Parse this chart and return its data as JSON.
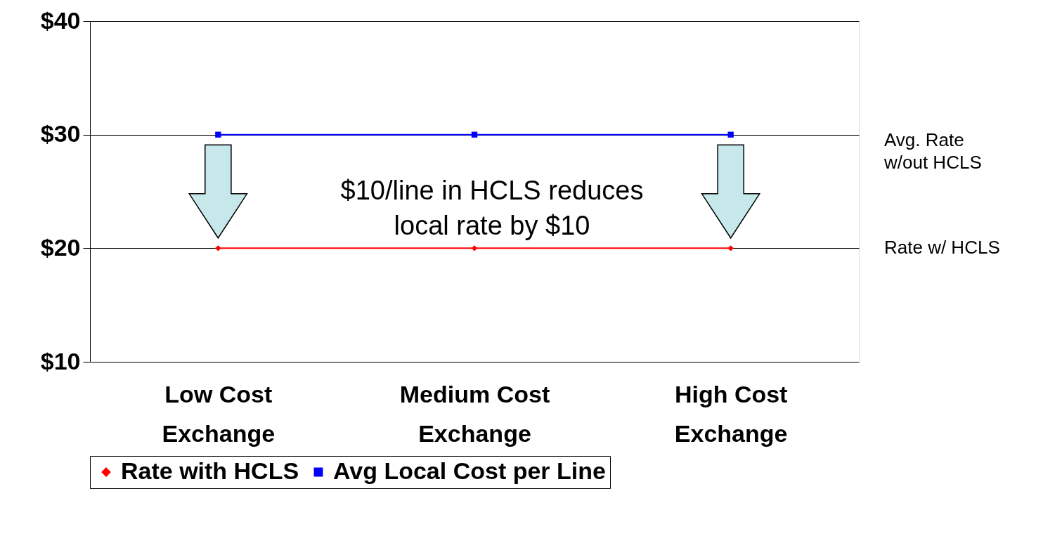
{
  "chart_data": {
    "type": "line",
    "categories": [
      "Low Cost Exchange",
      "Medium Cost Exchange",
      "High Cost Exchange"
    ],
    "series": [
      {
        "name": "Rate with HCLS",
        "color": "#ff0000",
        "marker": "diamond",
        "values": [
          20,
          20,
          20
        ]
      },
      {
        "name": "Avg Local Cost per Line",
        "color": "#0000ff",
        "marker": "square",
        "values": [
          30,
          30,
          30
        ]
      }
    ],
    "ylim": [
      10,
      40
    ],
    "yticks": [
      {
        "value": 10,
        "label": "$10"
      },
      {
        "value": 20,
        "label": "$20"
      },
      {
        "value": 30,
        "label": "$30"
      },
      {
        "value": 40,
        "label": "$40"
      }
    ],
    "grid": "y",
    "legend": "bottom",
    "annotations": [
      "$10/line in HCLS reduces local rate by $10",
      "Avg.  Rate w/out HCLS",
      "Rate w/ HCLS"
    ]
  }
}
